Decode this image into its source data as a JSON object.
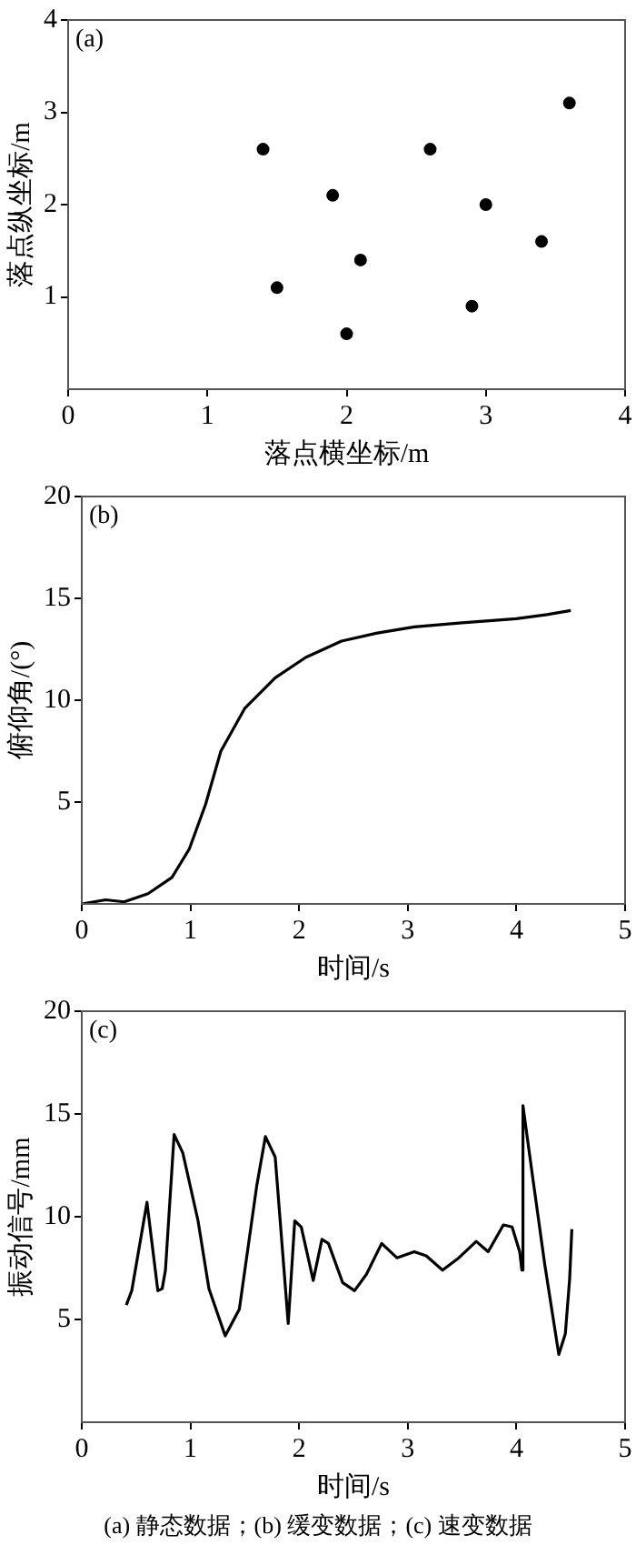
{
  "chart_data": [
    {
      "type": "scatter",
      "title": "(a)",
      "xlabel": "落点横坐标/m",
      "ylabel": "落点纵坐标/m",
      "marker": "circle",
      "color": "#000000",
      "x": [
        1.4,
        1.5,
        1.9,
        2.0,
        2.1,
        2.6,
        2.9,
        3.0,
        3.4,
        3.6
      ],
      "values": [
        2.6,
        1.1,
        2.1,
        0.6,
        1.4,
        2.6,
        0.9,
        2.0,
        1.6,
        3.1
      ],
      "xlim": [
        0,
        4
      ],
      "ylim": [
        0,
        4
      ],
      "xticks": [
        0,
        1,
        2,
        3,
        4
      ],
      "yticks": [
        1,
        2,
        3,
        4
      ]
    },
    {
      "type": "line",
      "title": "(b)",
      "xlabel": "时间/s",
      "ylabel": "俯仰角/(°)",
      "marker": "none",
      "line_style": "solid",
      "color": "#000000",
      "x": [
        0,
        0.22,
        0.39,
        0.61,
        0.83,
        0.99,
        1.14,
        1.28,
        1.5,
        1.78,
        2.06,
        2.39,
        2.72,
        3.06,
        3.5,
        4.0,
        4.28,
        4.5
      ],
      "values": [
        0,
        0.2,
        0.1,
        0.5,
        1.3,
        2.7,
        4.9,
        7.5,
        9.6,
        11.1,
        12.1,
        12.9,
        13.3,
        13.6,
        13.8,
        14.0,
        14.2,
        14.4
      ],
      "xlim": [
        0,
        5
      ],
      "ylim": [
        0,
        20
      ],
      "xticks": [
        0,
        1,
        2,
        3,
        4,
        5
      ],
      "yticks": [
        5,
        10,
        15,
        20
      ]
    },
    {
      "type": "line",
      "title": "(c)",
      "xlabel": "时间/s",
      "ylabel": "振动信号/mm",
      "marker": "none",
      "line_style": "solid",
      "color": "#000000",
      "x": [
        0.41,
        0.46,
        0.6,
        0.7,
        0.74,
        0.77,
        0.85,
        0.93,
        1.07,
        1.17,
        1.32,
        1.45,
        1.61,
        1.69,
        1.78,
        1.9,
        1.96,
        2.02,
        2.13,
        2.21,
        2.27,
        2.4,
        2.51,
        2.62,
        2.76,
        2.9,
        3.06,
        3.17,
        3.32,
        3.47,
        3.63,
        3.74,
        3.88,
        3.96,
        4.03,
        4.05,
        4.06,
        4.15,
        4.26,
        4.39,
        4.45,
        4.49,
        4.51
      ],
      "values": [
        5.7,
        6.4,
        10.7,
        6.4,
        6.5,
        7.4,
        14.0,
        13.1,
        9.8,
        6.5,
        4.2,
        5.5,
        11.5,
        13.9,
        12.9,
        4.8,
        9.8,
        9.5,
        6.9,
        8.9,
        8.7,
        6.8,
        6.4,
        7.2,
        8.7,
        8.0,
        8.3,
        8.1,
        7.4,
        8.0,
        8.8,
        8.3,
        9.6,
        9.5,
        8.3,
        7.4,
        15.4,
        11.9,
        7.7,
        3.3,
        4.3,
        7.0,
        9.4
      ],
      "xlim": [
        0,
        5
      ],
      "ylim": [
        0,
        20
      ],
      "xticks": [
        0,
        1,
        2,
        3,
        4,
        5
      ],
      "yticks": [
        5,
        10,
        15,
        20
      ],
      "annotations": [
        "(a) 静态数据；(b) 缓变数据；(c) 速变数据"
      ]
    }
  ]
}
